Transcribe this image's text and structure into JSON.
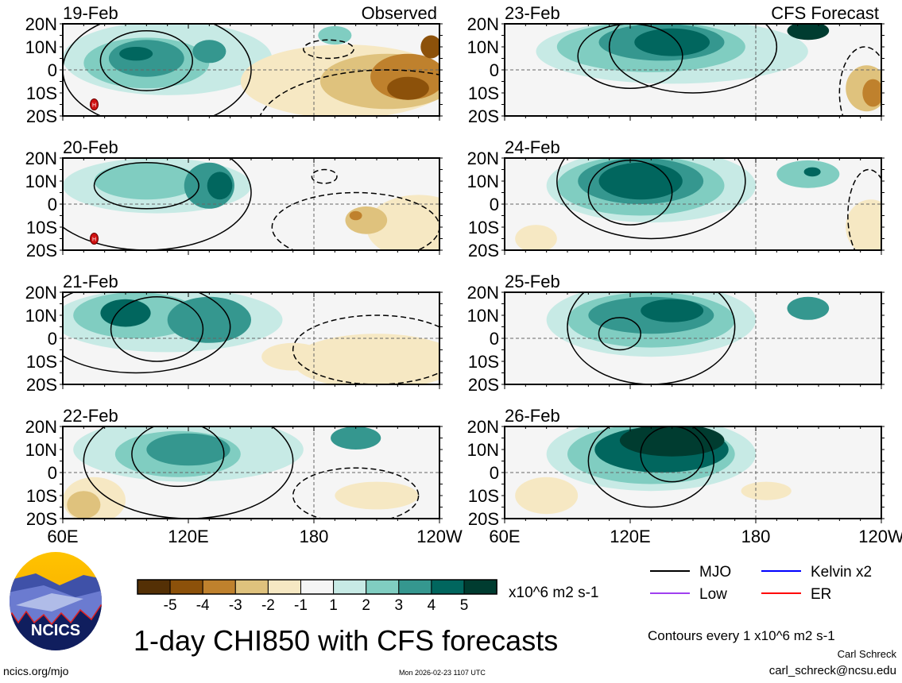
{
  "chart_data": {
    "type": "heatmap",
    "title": "1-day CHI850 with CFS forecasts",
    "units": "x10^6 m2 s-1",
    "contour_note": "Contours every 1 x10^6 m2 s-1",
    "x_ticks": [
      "60E",
      "120E",
      "180",
      "120W"
    ],
    "x_tick_lons": [
      60,
      120,
      180,
      240
    ],
    "y_ticks": [
      "20N",
      "10N",
      "0",
      "10S",
      "20S"
    ],
    "y_tick_lats": [
      20,
      10,
      0,
      -10,
      -20
    ],
    "lon_range": [
      60,
      240
    ],
    "lat_range": [
      -20,
      20
    ],
    "colorbar": {
      "labels": [
        "-5",
        "-4",
        "-3",
        "-2",
        "-1",
        "1",
        "2",
        "3",
        "4",
        "5"
      ],
      "colors": [
        "#543005",
        "#8c510a",
        "#bf812d",
        "#dfc27d",
        "#f6e8c3",
        "#f5f5f5",
        "#c7eae5",
        "#80cdc1",
        "#35978f",
        "#01665e",
        "#003c30"
      ]
    },
    "legend": [
      {
        "label": "MJO",
        "color": "#000000"
      },
      {
        "label": "Kelvin x2",
        "color": "#0000ff"
      },
      {
        "label": "Low",
        "color": "#a040f0"
      },
      {
        "label": "ER",
        "color": "#ff0000"
      }
    ],
    "panels": [
      {
        "date": "19-Feb",
        "tag": "Observed",
        "col": 0,
        "row": 0,
        "H": [
          75,
          -15
        ],
        "blobs": [
          [
            110,
            5,
            50,
            16,
            1
          ],
          [
            100,
            3,
            30,
            11,
            2
          ],
          [
            100,
            5,
            18,
            8,
            3
          ],
          [
            95,
            7,
            8,
            3,
            4
          ],
          [
            130,
            8,
            8,
            5,
            3
          ],
          [
            190,
            15,
            8,
            4,
            2
          ],
          [
            195,
            -5,
            50,
            16,
            -1
          ],
          [
            215,
            -5,
            32,
            12,
            -2
          ],
          [
            225,
            -3,
            18,
            10,
            -3
          ],
          [
            225,
            -8,
            10,
            5,
            -4
          ],
          [
            236,
            10,
            5,
            5,
            -4
          ]
        ],
        "contours": [
          [
            100,
            4,
            22,
            13,
            0
          ],
          [
            105,
            0,
            45,
            25,
            0
          ],
          [
            187,
            9,
            12,
            4,
            1
          ],
          [
            215,
            -25,
            62,
            25,
            1
          ]
        ]
      },
      {
        "date": "20-Feb",
        "tag": "",
        "col": 0,
        "row": 1,
        "H": [
          75,
          -15
        ],
        "blobs": [
          [
            105,
            8,
            45,
            12,
            1
          ],
          [
            100,
            10,
            25,
            8,
            2
          ],
          [
            130,
            8,
            12,
            10,
            3
          ],
          [
            135,
            8,
            6,
            6,
            4
          ],
          [
            230,
            -10,
            25,
            14,
            -1
          ],
          [
            205,
            -7,
            10,
            6,
            -2
          ],
          [
            200,
            -5,
            3,
            2,
            -3
          ]
        ],
        "contours": [
          [
            100,
            8,
            25,
            10,
            0
          ],
          [
            100,
            5,
            50,
            25,
            0
          ],
          [
            185,
            12,
            6,
            3,
            1
          ],
          [
            200,
            -10,
            40,
            15,
            1
          ]
        ]
      },
      {
        "date": "21-Feb",
        "tag": "",
        "col": 0,
        "row": 2,
        "blobs": [
          [
            110,
            8,
            55,
            14,
            1
          ],
          [
            95,
            10,
            30,
            10,
            2
          ],
          [
            130,
            8,
            20,
            10,
            3
          ],
          [
            90,
            11,
            12,
            6,
            4
          ],
          [
            210,
            -10,
            40,
            12,
            -1
          ],
          [
            170,
            -8,
            15,
            6,
            -1
          ]
        ],
        "contours": [
          [
            105,
            4,
            22,
            14,
            0
          ],
          [
            95,
            5,
            45,
            20,
            0
          ],
          [
            210,
            -5,
            40,
            15,
            1
          ]
        ]
      },
      {
        "date": "22-Feb",
        "tag": "",
        "col": 0,
        "row": 3,
        "blobs": [
          [
            120,
            10,
            55,
            14,
            1
          ],
          [
            115,
            8,
            30,
            10,
            2
          ],
          [
            120,
            10,
            20,
            7,
            3
          ],
          [
            200,
            15,
            12,
            5,
            3
          ],
          [
            75,
            -12,
            15,
            10,
            -1
          ],
          [
            70,
            -14,
            8,
            6,
            -2
          ],
          [
            210,
            -10,
            20,
            6,
            -1
          ]
        ],
        "contours": [
          [
            115,
            8,
            22,
            14,
            0
          ],
          [
            120,
            5,
            50,
            25,
            0
          ],
          [
            200,
            -10,
            30,
            12,
            1
          ]
        ]
      },
      {
        "date": "23-Feb",
        "tag": "CFS Forecast",
        "col": 1,
        "row": 0,
        "blobs": [
          [
            140,
            8,
            65,
            14,
            1
          ],
          [
            130,
            10,
            45,
            11,
            2
          ],
          [
            135,
            12,
            30,
            8,
            3
          ],
          [
            140,
            12,
            18,
            6,
            4
          ],
          [
            205,
            17,
            10,
            4,
            5
          ],
          [
            233,
            -8,
            10,
            10,
            -2
          ],
          [
            236,
            -10,
            5,
            6,
            -3
          ]
        ],
        "contours": [
          [
            120,
            6,
            25,
            14,
            0
          ],
          [
            150,
            10,
            40,
            20,
            0
          ],
          [
            232,
            -10,
            12,
            20,
            1
          ]
        ]
      },
      {
        "date": "24-Feb",
        "tag": "",
        "col": 1,
        "row": 1,
        "blobs": [
          [
            130,
            8,
            50,
            16,
            1
          ],
          [
            125,
            8,
            40,
            13,
            2
          ],
          [
            125,
            10,
            30,
            10,
            3
          ],
          [
            125,
            10,
            20,
            8,
            4
          ],
          [
            205,
            13,
            15,
            6,
            2
          ],
          [
            207,
            14,
            4,
            2,
            4
          ],
          [
            235,
            -10,
            12,
            12,
            -1
          ],
          [
            75,
            -15,
            10,
            6,
            -1
          ]
        ],
        "contours": [
          [
            120,
            5,
            20,
            14,
            0
          ],
          [
            130,
            10,
            45,
            25,
            0
          ],
          [
            234,
            -5,
            10,
            20,
            1
          ]
        ]
      },
      {
        "date": "25-Feb",
        "tag": "",
        "col": 1,
        "row": 2,
        "blobs": [
          [
            130,
            8,
            50,
            16,
            1
          ],
          [
            130,
            8,
            40,
            12,
            2
          ],
          [
            130,
            10,
            30,
            8,
            3
          ],
          [
            140,
            12,
            15,
            5,
            4
          ],
          [
            205,
            13,
            10,
            5,
            3
          ]
        ],
        "contours": [
          [
            115,
            2,
            10,
            7,
            0
          ],
          [
            130,
            5,
            40,
            25,
            0
          ]
        ]
      },
      {
        "date": "26-Feb",
        "tag": "",
        "col": 1,
        "row": 3,
        "blobs": [
          [
            130,
            8,
            50,
            16,
            1
          ],
          [
            130,
            8,
            40,
            13,
            2
          ],
          [
            135,
            10,
            32,
            10,
            4
          ],
          [
            140,
            14,
            25,
            7,
            5
          ],
          [
            80,
            -10,
            15,
            8,
            -1
          ],
          [
            185,
            -8,
            12,
            4,
            -1
          ]
        ],
        "contours": [
          [
            130,
            5,
            30,
            20,
            0
          ],
          [
            140,
            8,
            15,
            12,
            0
          ]
        ]
      }
    ]
  },
  "footer": {
    "logo_text": "NCICS",
    "url": "ncics.org/mjo",
    "timestamp": "Mon 2026-02-23 1107 UTC",
    "author": "Carl Schreck",
    "email": "carl_schreck@ncsu.edu"
  }
}
